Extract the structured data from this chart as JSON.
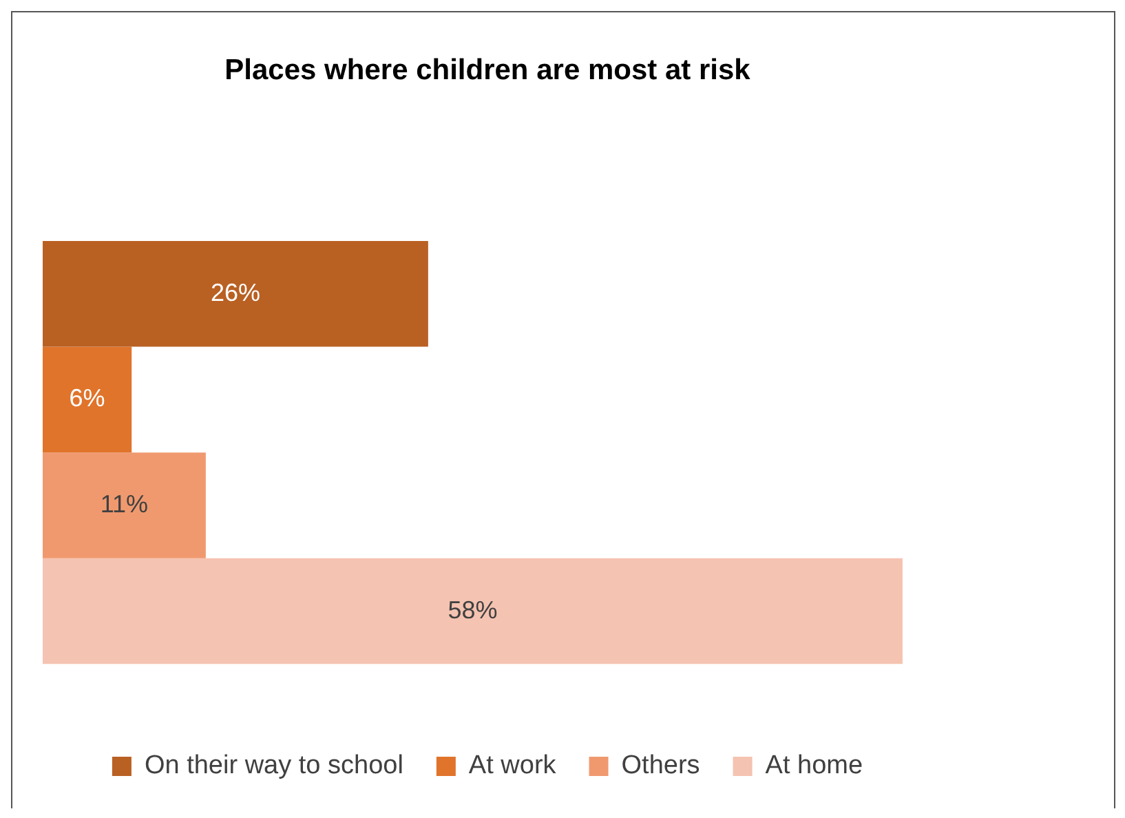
{
  "chart_data": {
    "type": "bar",
    "title": "Places where children are most at risk",
    "orientation": "horizontal",
    "categories": [
      null
    ],
    "legend": "bottom",
    "series": [
      {
        "name": "On their way to school",
        "color": "#b96023",
        "values": [
          26
        ],
        "value_labels": [
          "26%"
        ]
      },
      {
        "name": "At work",
        "color": "#e0742b",
        "values": [
          6
        ],
        "value_labels": [
          "6%"
        ]
      },
      {
        "name": "Others",
        "color": "#f0996f",
        "values": [
          11
        ],
        "value_labels": [
          "11%"
        ]
      },
      {
        "name": "At home",
        "color": "#f5c3b1",
        "values": [
          58
        ],
        "value_labels": [
          "58%"
        ]
      }
    ]
  }
}
